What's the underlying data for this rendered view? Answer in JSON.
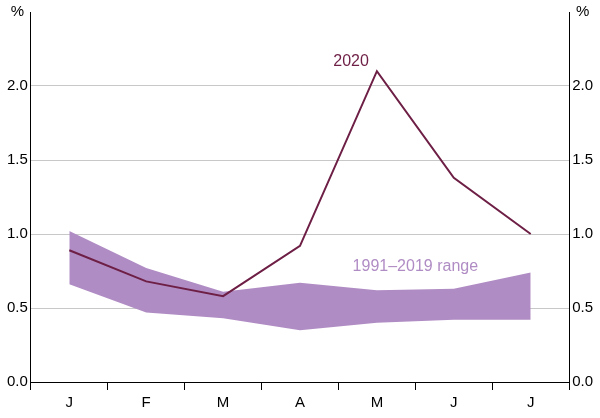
{
  "chart_data": {
    "type": "line",
    "categories": [
      "J",
      "F",
      "M",
      "A",
      "M",
      "J",
      "J"
    ],
    "series": [
      {
        "name": "2020",
        "color": "#6e1f45",
        "values": [
          0.89,
          0.68,
          0.58,
          0.92,
          2.1,
          1.38,
          1.0
        ]
      },
      {
        "name": "1991–2019 range",
        "type": "range",
        "color": "#b08cc4",
        "low": [
          0.66,
          0.47,
          0.43,
          0.35,
          0.4,
          0.42,
          0.42
        ],
        "high": [
          1.02,
          0.77,
          0.61,
          0.67,
          0.62,
          0.63,
          0.74
        ]
      }
    ],
    "ylabel": "%",
    "y2label": "%",
    "ylim": [
      0,
      2.5
    ],
    "yticks": [
      {
        "value": 0,
        "label": "0.0"
      },
      {
        "value": 0.5,
        "label": "0.5"
      },
      {
        "value": 1,
        "label": "1.0"
      },
      {
        "value": 1.5,
        "label": "1.5"
      },
      {
        "value": 2,
        "label": "2.0"
      }
    ],
    "y2lim": [
      0,
      2.5
    ],
    "y2ticks": [
      {
        "value": 0,
        "label": "0.0"
      },
      {
        "value": 0.5,
        "label": "0.5"
      },
      {
        "value": 1,
        "label": "1.0"
      },
      {
        "value": 1.5,
        "label": "1.5"
      },
      {
        "value": 2,
        "label": "2.0"
      }
    ],
    "grid": true
  }
}
